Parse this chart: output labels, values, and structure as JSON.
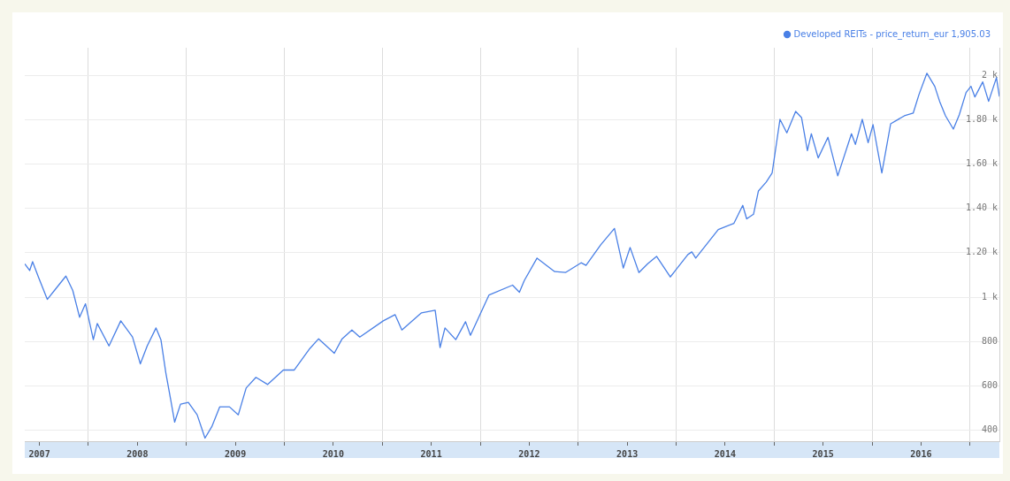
{
  "chart_data": {
    "type": "line",
    "legend": "top right",
    "grid": true,
    "marker": "none",
    "line_style": "solid",
    "xlim": [
      2007.35,
      2017.3
    ],
    "xticks": [
      {
        "value": 2007.5,
        "label": "2007"
      },
      {
        "value": 2008,
        "label": null
      },
      {
        "value": 2008.5,
        "label": "2008"
      },
      {
        "value": 2009,
        "label": null
      },
      {
        "value": 2009.5,
        "label": "2009"
      },
      {
        "value": 2010,
        "label": null
      },
      {
        "value": 2010.5,
        "label": "2010"
      },
      {
        "value": 2011,
        "label": null
      },
      {
        "value": 2011.5,
        "label": "2011"
      },
      {
        "value": 2012,
        "label": null
      },
      {
        "value": 2012.5,
        "label": "2012"
      },
      {
        "value": 2013,
        "label": null
      },
      {
        "value": 2013.5,
        "label": "2013"
      },
      {
        "value": 2014,
        "label": null
      },
      {
        "value": 2014.5,
        "label": "2014"
      },
      {
        "value": 2015,
        "label": null
      },
      {
        "value": 2015.5,
        "label": "2015"
      },
      {
        "value": 2016,
        "label": null
      },
      {
        "value": 2016.5,
        "label": "2016"
      },
      {
        "value": 2017,
        "label": null
      }
    ],
    "ylim": [
      350,
      2125
    ],
    "yticks": [
      400,
      600,
      800,
      {
        "value": 1000,
        "label": "1 k"
      },
      {
        "value": 1200,
        "label": "1.20 k"
      },
      {
        "value": 1400,
        "label": "1.40 k"
      },
      {
        "value": 1600,
        "label": "1.60 k"
      },
      {
        "value": 1800,
        "label": "1.80 k"
      },
      {
        "value": 2000,
        "label": "2 k"
      }
    ],
    "series": [
      {
        "name": "Developed REITs - price_return_eur 1,905.03",
        "color": "#4a80e6",
        "x": [
          2007.35,
          2007.4,
          2007.43,
          2007.49,
          2007.58,
          2007.66,
          2007.77,
          2007.84,
          2007.91,
          2007.97,
          2008.05,
          2008.09,
          2008.21,
          2008.33,
          2008.45,
          2008.53,
          2008.6,
          2008.69,
          2008.74,
          2008.79,
          2008.84,
          2008.88,
          2008.94,
          2009.02,
          2009.11,
          2009.19,
          2009.26,
          2009.34,
          2009.44,
          2009.53,
          2009.61,
          2009.71,
          2009.83,
          2009.99,
          2010.1,
          2010.26,
          2010.35,
          2010.51,
          2010.59,
          2010.69,
          2010.77,
          2011.01,
          2011.13,
          2011.2,
          2011.4,
          2011.54,
          2011.59,
          2011.64,
          2011.75,
          2011.85,
          2011.9,
          2012.09,
          2012.33,
          2012.4,
          2012.45,
          2012.58,
          2012.76,
          2012.87,
          2013.03,
          2013.08,
          2013.23,
          2013.37,
          2013.46,
          2013.53,
          2013.62,
          2013.71,
          2013.8,
          2013.94,
          2014.12,
          2014.16,
          2014.2,
          2014.43,
          2014.59,
          2014.68,
          2014.72,
          2014.79,
          2014.84,
          2014.92,
          2014.98,
          2015.06,
          2015.13,
          2015.22,
          2015.28,
          2015.34,
          2015.38,
          2015.45,
          2015.55,
          2015.65,
          2015.79,
          2015.83,
          2015.9,
          2015.96,
          2016.01,
          2016.06,
          2016.1,
          2016.19,
          2016.33,
          2016.42,
          2016.48,
          2016.56,
          2016.64,
          2016.69,
          2016.75,
          2016.83,
          2016.89,
          2016.96,
          2017.01,
          2017.05,
          2017.13,
          2017.19,
          2017.27,
          2017.3
        ],
        "values": [
          1150,
          1120,
          1160,
          1090,
          990,
          1034,
          1095,
          1030,
          909,
          970,
          808,
          881,
          780,
          893,
          820,
          699,
          780,
          861,
          808,
          659,
          537,
          436,
          517,
          525,
          469,
          364,
          416,
          505,
          505,
          469,
          590,
          638,
          606,
          671,
          671,
          768,
          812,
          747,
          812,
          852,
          820,
          893,
          921,
          852,
          929,
          941,
          772,
          861,
          808,
          889,
          828,
          1010,
          1054,
          1022,
          1075,
          1176,
          1115,
          1111,
          1155,
          1143,
          1236,
          1310,
          1131,
          1224,
          1111,
          1151,
          1184,
          1091,
          1192,
          1204,
          1176,
          1305,
          1333,
          1414,
          1353,
          1374,
          1479,
          1519,
          1560,
          1802,
          1741,
          1838,
          1810,
          1661,
          1737,
          1628,
          1721,
          1547,
          1737,
          1689,
          1802,
          1697,
          1778,
          1656,
          1560,
          1782,
          1818,
          1830,
          1915,
          2010,
          1951,
          1883,
          1818,
          1758,
          1822,
          1923,
          1951,
          1903,
          1971,
          1883,
          1990,
          1905
        ]
      }
    ]
  }
}
